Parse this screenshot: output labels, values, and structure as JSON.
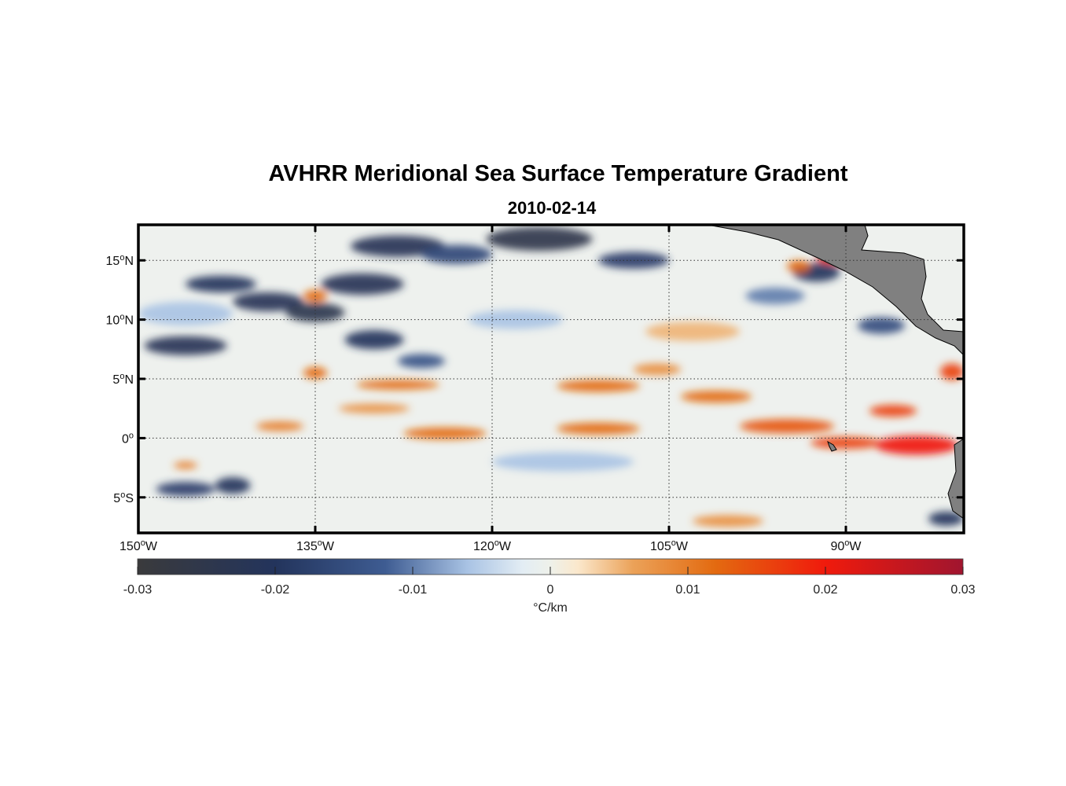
{
  "title": "AVHRR Meridional Sea Surface Temperature Gradient",
  "subtitle": "2010-02-14",
  "chart_data": {
    "type": "heatmap",
    "variable": "meridional SST gradient",
    "lon_range": [
      -150,
      -80
    ],
    "lat_range": [
      -8,
      18
    ],
    "lon_ticks": [
      {
        "value": -150,
        "label": "150",
        "suffix": "W"
      },
      {
        "value": -135,
        "label": "135",
        "suffix": "W"
      },
      {
        "value": -120,
        "label": "120",
        "suffix": "W"
      },
      {
        "value": -105,
        "label": "105",
        "suffix": "W"
      },
      {
        "value": -90,
        "label": "90",
        "suffix": "W"
      }
    ],
    "lat_ticks": [
      {
        "value": 15,
        "label": "15",
        "suffix": "N"
      },
      {
        "value": 10,
        "label": "10",
        "suffix": "N"
      },
      {
        "value": 5,
        "label": "5",
        "suffix": "N"
      },
      {
        "value": 0,
        "label": "0",
        "suffix": ""
      },
      {
        "value": -5,
        "label": "5",
        "suffix": "S"
      }
    ],
    "degree_symbol": "o",
    "grid": true,
    "colorbar": {
      "label": "°C/km",
      "range": [
        -0.03,
        0.03
      ],
      "ticks": [
        {
          "value": -0.03,
          "label": "-0.03"
        },
        {
          "value": -0.02,
          "label": "-0.02"
        },
        {
          "value": -0.01,
          "label": "-0.01"
        },
        {
          "value": 0,
          "label": "0"
        },
        {
          "value": 0.01,
          "label": "0.01"
        },
        {
          "value": 0.02,
          "label": "0.02"
        },
        {
          "value": 0.03,
          "label": "0.03"
        }
      ],
      "stops": [
        {
          "value": -0.03,
          "color": "#3a3a3c"
        },
        {
          "value": -0.02,
          "color": "#23345c"
        },
        {
          "value": -0.012,
          "color": "#3e5c92"
        },
        {
          "value": -0.006,
          "color": "#a9c3e4"
        },
        {
          "value": -0.002,
          "color": "#e3edf4"
        },
        {
          "value": 0,
          "color": "#eef1ea"
        },
        {
          "value": 0.002,
          "color": "#fbe8cc"
        },
        {
          "value": 0.006,
          "color": "#eba259"
        },
        {
          "value": 0.012,
          "color": "#e36a10"
        },
        {
          "value": 0.02,
          "color": "#f01a0c"
        },
        {
          "value": 0.03,
          "color": "#a0152f"
        }
      ]
    },
    "features": [
      {
        "lon": -143,
        "lat": 13.0,
        "value": -0.02,
        "rlon": 3.0,
        "rlat": 0.7
      },
      {
        "lon": -139,
        "lat": 11.5,
        "value": -0.022,
        "rlon": 3.0,
        "rlat": 0.8
      },
      {
        "lon": -135,
        "lat": 10.6,
        "value": -0.024,
        "rlon": 2.5,
        "rlat": 0.8
      },
      {
        "lon": -146,
        "lat": 7.8,
        "value": -0.022,
        "rlon": 3.5,
        "rlat": 0.8
      },
      {
        "lon": -131,
        "lat": 13.0,
        "value": -0.022,
        "rlon": 3.5,
        "rlat": 0.9
      },
      {
        "lon": -130,
        "lat": 8.3,
        "value": -0.02,
        "rlon": 2.5,
        "rlat": 0.8
      },
      {
        "lon": -128,
        "lat": 16.2,
        "value": -0.022,
        "rlon": 4.0,
        "rlat": 0.9
      },
      {
        "lon": -116,
        "lat": 16.8,
        "value": -0.025,
        "rlon": 4.5,
        "rlat": 1.0
      },
      {
        "lon": -108,
        "lat": 15.0,
        "value": -0.018,
        "rlon": 3.0,
        "rlat": 0.7
      },
      {
        "lon": -123,
        "lat": 15.5,
        "value": -0.016,
        "rlon": 3.0,
        "rlat": 0.8
      },
      {
        "lon": -92.5,
        "lat": 14.0,
        "value": -0.02,
        "rlon": 2.0,
        "rlat": 0.8
      },
      {
        "lon": -87,
        "lat": 9.5,
        "value": -0.015,
        "rlon": 2.0,
        "rlat": 0.7
      },
      {
        "lon": -126,
        "lat": 6.5,
        "value": -0.014,
        "rlon": 2.0,
        "rlat": 0.6
      },
      {
        "lon": -146,
        "lat": -4.3,
        "value": -0.018,
        "rlon": 2.5,
        "rlat": 0.6
      },
      {
        "lon": -142,
        "lat": -4.0,
        "value": -0.02,
        "rlon": 1.5,
        "rlat": 0.7
      },
      {
        "lon": -81.5,
        "lat": -6.8,
        "value": -0.02,
        "rlon": 1.5,
        "rlat": 0.6
      },
      {
        "lon": -96,
        "lat": 12.0,
        "value": -0.01,
        "rlon": 2.5,
        "rlat": 0.7
      },
      {
        "lon": -114,
        "lat": -2.0,
        "value": -0.006,
        "rlon": 6.0,
        "rlat": 0.8
      },
      {
        "lon": -128,
        "lat": 4.5,
        "value": 0.012,
        "rlon": 3.5,
        "rlat": 0.4
      },
      {
        "lon": -124,
        "lat": 0.4,
        "value": 0.012,
        "rlon": 3.5,
        "rlat": 0.5
      },
      {
        "lon": -111,
        "lat": 4.4,
        "value": 0.012,
        "rlon": 3.5,
        "rlat": 0.5
      },
      {
        "lon": -111,
        "lat": 0.8,
        "value": 0.012,
        "rlon": 3.5,
        "rlat": 0.5
      },
      {
        "lon": -101,
        "lat": 3.5,
        "value": 0.012,
        "rlon": 3.0,
        "rlat": 0.5
      },
      {
        "lon": -95,
        "lat": 1.0,
        "value": 0.014,
        "rlon": 4.0,
        "rlat": 0.6
      },
      {
        "lon": -90,
        "lat": -0.4,
        "value": 0.016,
        "rlon": 3.0,
        "rlat": 0.5
      },
      {
        "lon": -84,
        "lat": -0.6,
        "value": 0.02,
        "rlon": 3.5,
        "rlat": 0.8
      },
      {
        "lon": -86,
        "lat": 2.3,
        "value": 0.016,
        "rlon": 2.0,
        "rlat": 0.5
      },
      {
        "lon": -91,
        "lat": 15.2,
        "value": 0.018,
        "rlon": 1.5,
        "rlat": 0.5
      },
      {
        "lon": -94,
        "lat": 14.5,
        "value": 0.012,
        "rlon": 1.0,
        "rlat": 0.5
      },
      {
        "lon": -81,
        "lat": 5.6,
        "value": 0.016,
        "rlon": 1.0,
        "rlat": 0.7
      },
      {
        "lon": -135,
        "lat": 12.0,
        "value": 0.012,
        "rlon": 1.0,
        "rlat": 0.5
      },
      {
        "lon": -135,
        "lat": 5.5,
        "value": 0.012,
        "rlon": 1.0,
        "rlat": 0.5
      },
      {
        "lon": -138,
        "lat": 1.0,
        "value": 0.01,
        "rlon": 2.0,
        "rlat": 0.4
      },
      {
        "lon": -130,
        "lat": 2.5,
        "value": 0.008,
        "rlon": 3.0,
        "rlat": 0.4
      },
      {
        "lon": -146,
        "lat": -2.3,
        "value": 0.01,
        "rlon": 1.0,
        "rlat": 0.3
      },
      {
        "lon": -100,
        "lat": -7.0,
        "value": 0.008,
        "rlon": 3.0,
        "rlat": 0.5
      },
      {
        "lon": -106,
        "lat": 5.8,
        "value": 0.008,
        "rlon": 2.0,
        "rlat": 0.5
      },
      {
        "lon": -146,
        "lat": 10.5,
        "value": -0.006,
        "rlon": 4.0,
        "rlat": 1.0
      },
      {
        "lon": -118,
        "lat": 10.0,
        "value": -0.006,
        "rlon": 4.0,
        "rlat": 0.8
      },
      {
        "lon": -103,
        "lat": 9.0,
        "value": 0.005,
        "rlon": 4.0,
        "rlat": 0.8
      }
    ]
  }
}
